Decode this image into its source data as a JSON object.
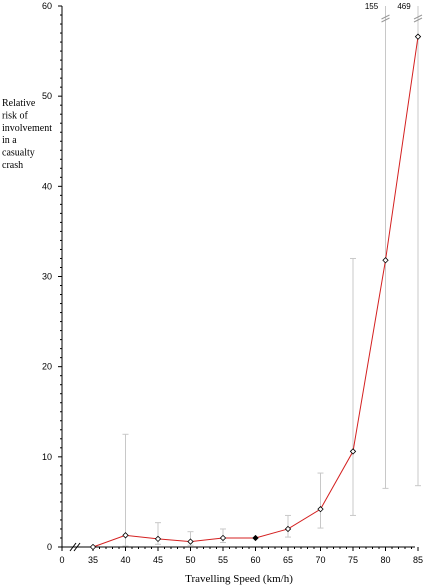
{
  "chart_data": {
    "type": "line",
    "title": "",
    "xlabel": "Travelling Speed (km/h)",
    "ylabel_lines": [
      "Relative",
      "risk of",
      "involvement",
      "in a",
      "casualty",
      "crash"
    ],
    "xlim": [
      0,
      85
    ],
    "ylim": [
      0,
      60
    ],
    "x_ticks": [
      0,
      35,
      40,
      45,
      50,
      55,
      60,
      65,
      70,
      75,
      80,
      85
    ],
    "y_ticks": [
      0,
      10,
      20,
      30,
      40,
      50,
      60
    ],
    "axis_break": true,
    "grid": false,
    "line_color": "#d42020",
    "error_bar_color": "#c8c8c8",
    "series": [
      {
        "x": [
          35,
          40,
          45,
          50,
          55,
          60,
          65,
          70,
          75,
          80,
          85
        ],
        "y": [
          0.0,
          1.3,
          0.9,
          0.6,
          1.0,
          1.0,
          2.0,
          4.2,
          10.6,
          31.8,
          56.6
        ],
        "reference_point_x": 60,
        "lower": [
          0.0,
          0.1,
          0.3,
          0.2,
          0.5,
          1.0,
          1.1,
          2.1,
          3.5,
          6.5,
          6.8
        ],
        "upper": [
          0.0,
          12.5,
          2.7,
          1.7,
          2.0,
          1.0,
          3.5,
          8.2,
          32.0,
          155,
          469
        ]
      }
    ],
    "off_chart_upper_labels": [
      {
        "x": 80,
        "text": "155"
      },
      {
        "x": 85,
        "text": "469"
      }
    ]
  }
}
